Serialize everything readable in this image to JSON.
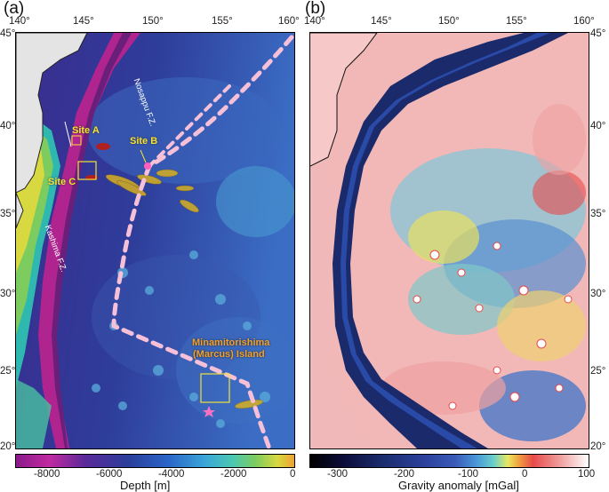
{
  "panels": {
    "a_label": "(a)",
    "b_label": "(b)"
  },
  "lon_ticks": [
    "140°",
    "145°",
    "150°",
    "155°",
    "160°"
  ],
  "lat_ticks_left": [
    "45°",
    "40°",
    "35°",
    "30°",
    "25°",
    "20°"
  ],
  "lat_ticks_right": [
    "45°",
    "40°",
    "35°",
    "30°",
    "25°",
    "20°"
  ],
  "map_a": {
    "sites": [
      "Site A",
      "Site B",
      "Site C"
    ],
    "fracture_zones": [
      "Nosappu F.Z.",
      "Kashima F.Z."
    ],
    "island_line1": "Minamitorishima",
    "island_line2": "(Marcus) Island",
    "colors": {
      "deep": "#6a1f7a",
      "mid": "#2a3f9a",
      "shallow": "#3e7ad0",
      "land": "#e8e8e8"
    }
  },
  "colorbar_a": {
    "title": "Depth [m]",
    "ticks": [
      "-8000",
      "-6000",
      "-4000",
      "-2000",
      "0"
    ],
    "colors": [
      "#8b1a8b",
      "#c02aa0",
      "#5a2a9a",
      "#2b3d9a",
      "#2a66c8",
      "#3aa6d8",
      "#4cc8b0",
      "#7ccc60",
      "#d8d840",
      "#f0a030"
    ]
  },
  "colorbar_b": {
    "title": "Gravity anomaly [mGal]",
    "ticks": [
      "-300",
      "-200",
      "-100",
      "0",
      "100"
    ],
    "colors": [
      "#000000",
      "#0c0c3a",
      "#1a2a6a",
      "#2a3f9a",
      "#3a5ab8",
      "#4a9ad8",
      "#6ad0c8",
      "#e8e860",
      "#f0a040",
      "#e84a4a",
      "#f0a0a0",
      "#ffffff"
    ]
  }
}
